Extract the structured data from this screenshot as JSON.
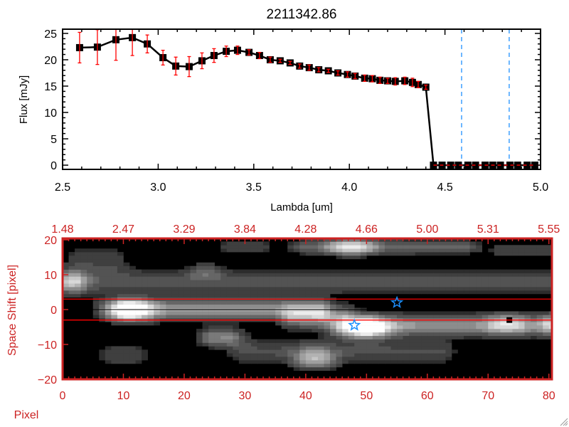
{
  "chart_data": [
    {
      "type": "line",
      "title": "2211342.86",
      "xlabel": "Lambda [um]",
      "ylabel": "Flux [mJy]",
      "xlim": [
        2.5,
        5.0
      ],
      "ylim": [
        -0.8,
        25.8
      ],
      "xticks": [
        "2.5",
        "3.0",
        "3.5",
        "4.0",
        "4.5",
        "5.0"
      ],
      "yticks": [
        "0",
        "5",
        "10",
        "15",
        "20",
        "25"
      ],
      "grid": false,
      "colors": {
        "line": "#000000",
        "errorbar": "#ff0000",
        "zero_line": "#ff0000",
        "vlines": "#1e90ff"
      },
      "x": [
        2.589,
        2.682,
        2.779,
        2.865,
        2.943,
        3.025,
        3.092,
        3.162,
        3.229,
        3.292,
        3.356,
        3.415,
        3.475,
        3.53,
        3.586,
        3.638,
        3.69,
        3.74,
        3.79,
        3.84,
        3.89,
        3.94,
        3.99,
        4.03,
        4.08,
        4.12,
        4.16,
        4.2,
        4.24,
        4.29,
        4.33,
        4.36,
        4.4,
        4.44,
        4.485,
        4.53,
        4.57,
        4.62,
        4.66,
        4.71,
        4.75,
        4.79,
        4.84,
        4.88,
        4.93,
        4.97
      ],
      "y": [
        22.3,
        22.4,
        23.8,
        24.2,
        23.0,
        20.4,
        18.8,
        18.7,
        19.8,
        20.8,
        21.6,
        21.8,
        21.4,
        20.8,
        20.0,
        19.8,
        19.4,
        18.8,
        18.5,
        18.1,
        17.9,
        17.5,
        17.2,
        16.9,
        16.5,
        16.4,
        16.1,
        16.0,
        15.9,
        16.0,
        15.7,
        15.3,
        14.8,
        0,
        0,
        0,
        0,
        0,
        0,
        0,
        0,
        0,
        0,
        0,
        0,
        0
      ],
      "yerr": [
        2.9,
        3.3,
        3.9,
        3.4,
        1.7,
        1.4,
        1.7,
        1.9,
        1.5,
        1.3,
        1.0,
        0.8,
        0.5,
        0.6,
        0.5,
        0.3,
        0.3,
        0.4,
        0.5,
        0.4,
        0.3,
        0.4,
        0.5,
        0.5,
        0.6,
        0.6,
        0.6,
        0.5,
        0.7,
        0.7,
        0.8,
        0.6,
        0.4,
        0,
        0,
        0,
        0,
        0,
        0,
        0,
        0,
        0,
        0,
        0,
        0,
        0
      ],
      "vlines": [
        4.587,
        4.836
      ]
    },
    {
      "type": "heatmap",
      "xlabel": "Pixel",
      "ylabel": "Space Shift [pixel]",
      "xlim": [
        0,
        80.5
      ],
      "ylim": [
        -20,
        20.4
      ],
      "xticks": [
        "0",
        "10",
        "20",
        "30",
        "40",
        "50",
        "60",
        "70",
        "80"
      ],
      "yticks": [
        "-20",
        "-10",
        "0",
        "10",
        "20"
      ],
      "top_xticks": [
        "1.48",
        "2.47",
        "3.29",
        "3.84",
        "4.28",
        "4.66",
        "5.00",
        "5.31",
        "5.55"
      ],
      "colormap": "grayscale",
      "colors": {
        "axes": "#cc2222",
        "aperture_lines": "#ff0000",
        "center_line": "#000000",
        "stars": "#1e90ff"
      },
      "aperture_lines": [
        3,
        -3
      ],
      "center_line": 0,
      "stars": [
        {
          "x": 55,
          "y": 2
        },
        {
          "x": 48,
          "y": -4.5
        }
      ],
      "bad_pixel": {
        "x": 73.5,
        "y": -3
      },
      "features": [
        {
          "x0": 10,
          "x1": 11,
          "y": 0,
          "amp": 1.0,
          "sx": 2.5,
          "sy": 2.0
        },
        {
          "x0": 11,
          "x1": 42,
          "y": 0,
          "amp": 0.55,
          "sx": 1.5,
          "sy": 2.0
        },
        {
          "x0": 38,
          "x1": 46,
          "y": -2,
          "amp": 0.45,
          "sx": 1.5,
          "sy": 2.2
        },
        {
          "x0": 48,
          "x1": 50,
          "y": -5,
          "amp": 1.0,
          "sx": 2.5,
          "sy": 2.0
        },
        {
          "x0": 50,
          "x1": 81,
          "y": -4.5,
          "amp": 0.55,
          "sx": 1.5,
          "sy": 2.0
        },
        {
          "x0": 72,
          "x1": 74,
          "y": -4,
          "amp": 0.35,
          "sx": 1.5,
          "sy": 2.0
        },
        {
          "x0": 80,
          "x1": 81,
          "y": -4,
          "amp": 0.3,
          "sx": 1.0,
          "sy": 2.0
        },
        {
          "x0": 0,
          "x1": 2,
          "y": 8,
          "amp": 0.55,
          "sx": 1.5,
          "sy": 2.0
        },
        {
          "x0": 2,
          "x1": 80,
          "y": 8,
          "amp": 0.25,
          "sx": 2.0,
          "sy": 2.5
        },
        {
          "x0": 23,
          "x1": 24,
          "y": 11,
          "amp": 0.25,
          "sx": 1.5,
          "sy": 1.5
        },
        {
          "x0": 47,
          "x1": 48,
          "y": 18,
          "amp": 0.65,
          "sx": 2.5,
          "sy": 1.5
        },
        {
          "x0": 40,
          "x1": 66,
          "y": 18,
          "amp": 0.3,
          "sx": 2.0,
          "sy": 1.5
        },
        {
          "x0": 28,
          "x1": 32,
          "y": 18,
          "amp": 0.2,
          "sx": 2.0,
          "sy": 1.2
        },
        {
          "x0": 73,
          "x1": 80,
          "y": 17,
          "amp": 0.2,
          "sx": 2.0,
          "sy": 1.5
        },
        {
          "x0": 3,
          "x1": 8,
          "y": 14,
          "amp": 0.18,
          "sx": 2.0,
          "sy": 3.0
        },
        {
          "x0": 25,
          "x1": 27,
          "y": -8,
          "amp": 0.45,
          "sx": 2.0,
          "sy": 1.8
        },
        {
          "x0": 41,
          "x1": 42,
          "y": -14,
          "amp": 0.55,
          "sx": 2.0,
          "sy": 2.0
        },
        {
          "x0": 30,
          "x1": 62,
          "y": -12,
          "amp": 0.22,
          "sx": 2.0,
          "sy": 2.5
        },
        {
          "x0": 8,
          "x1": 12,
          "y": -13,
          "amp": 0.18,
          "sx": 1.5,
          "sy": 2.5
        }
      ]
    }
  ]
}
